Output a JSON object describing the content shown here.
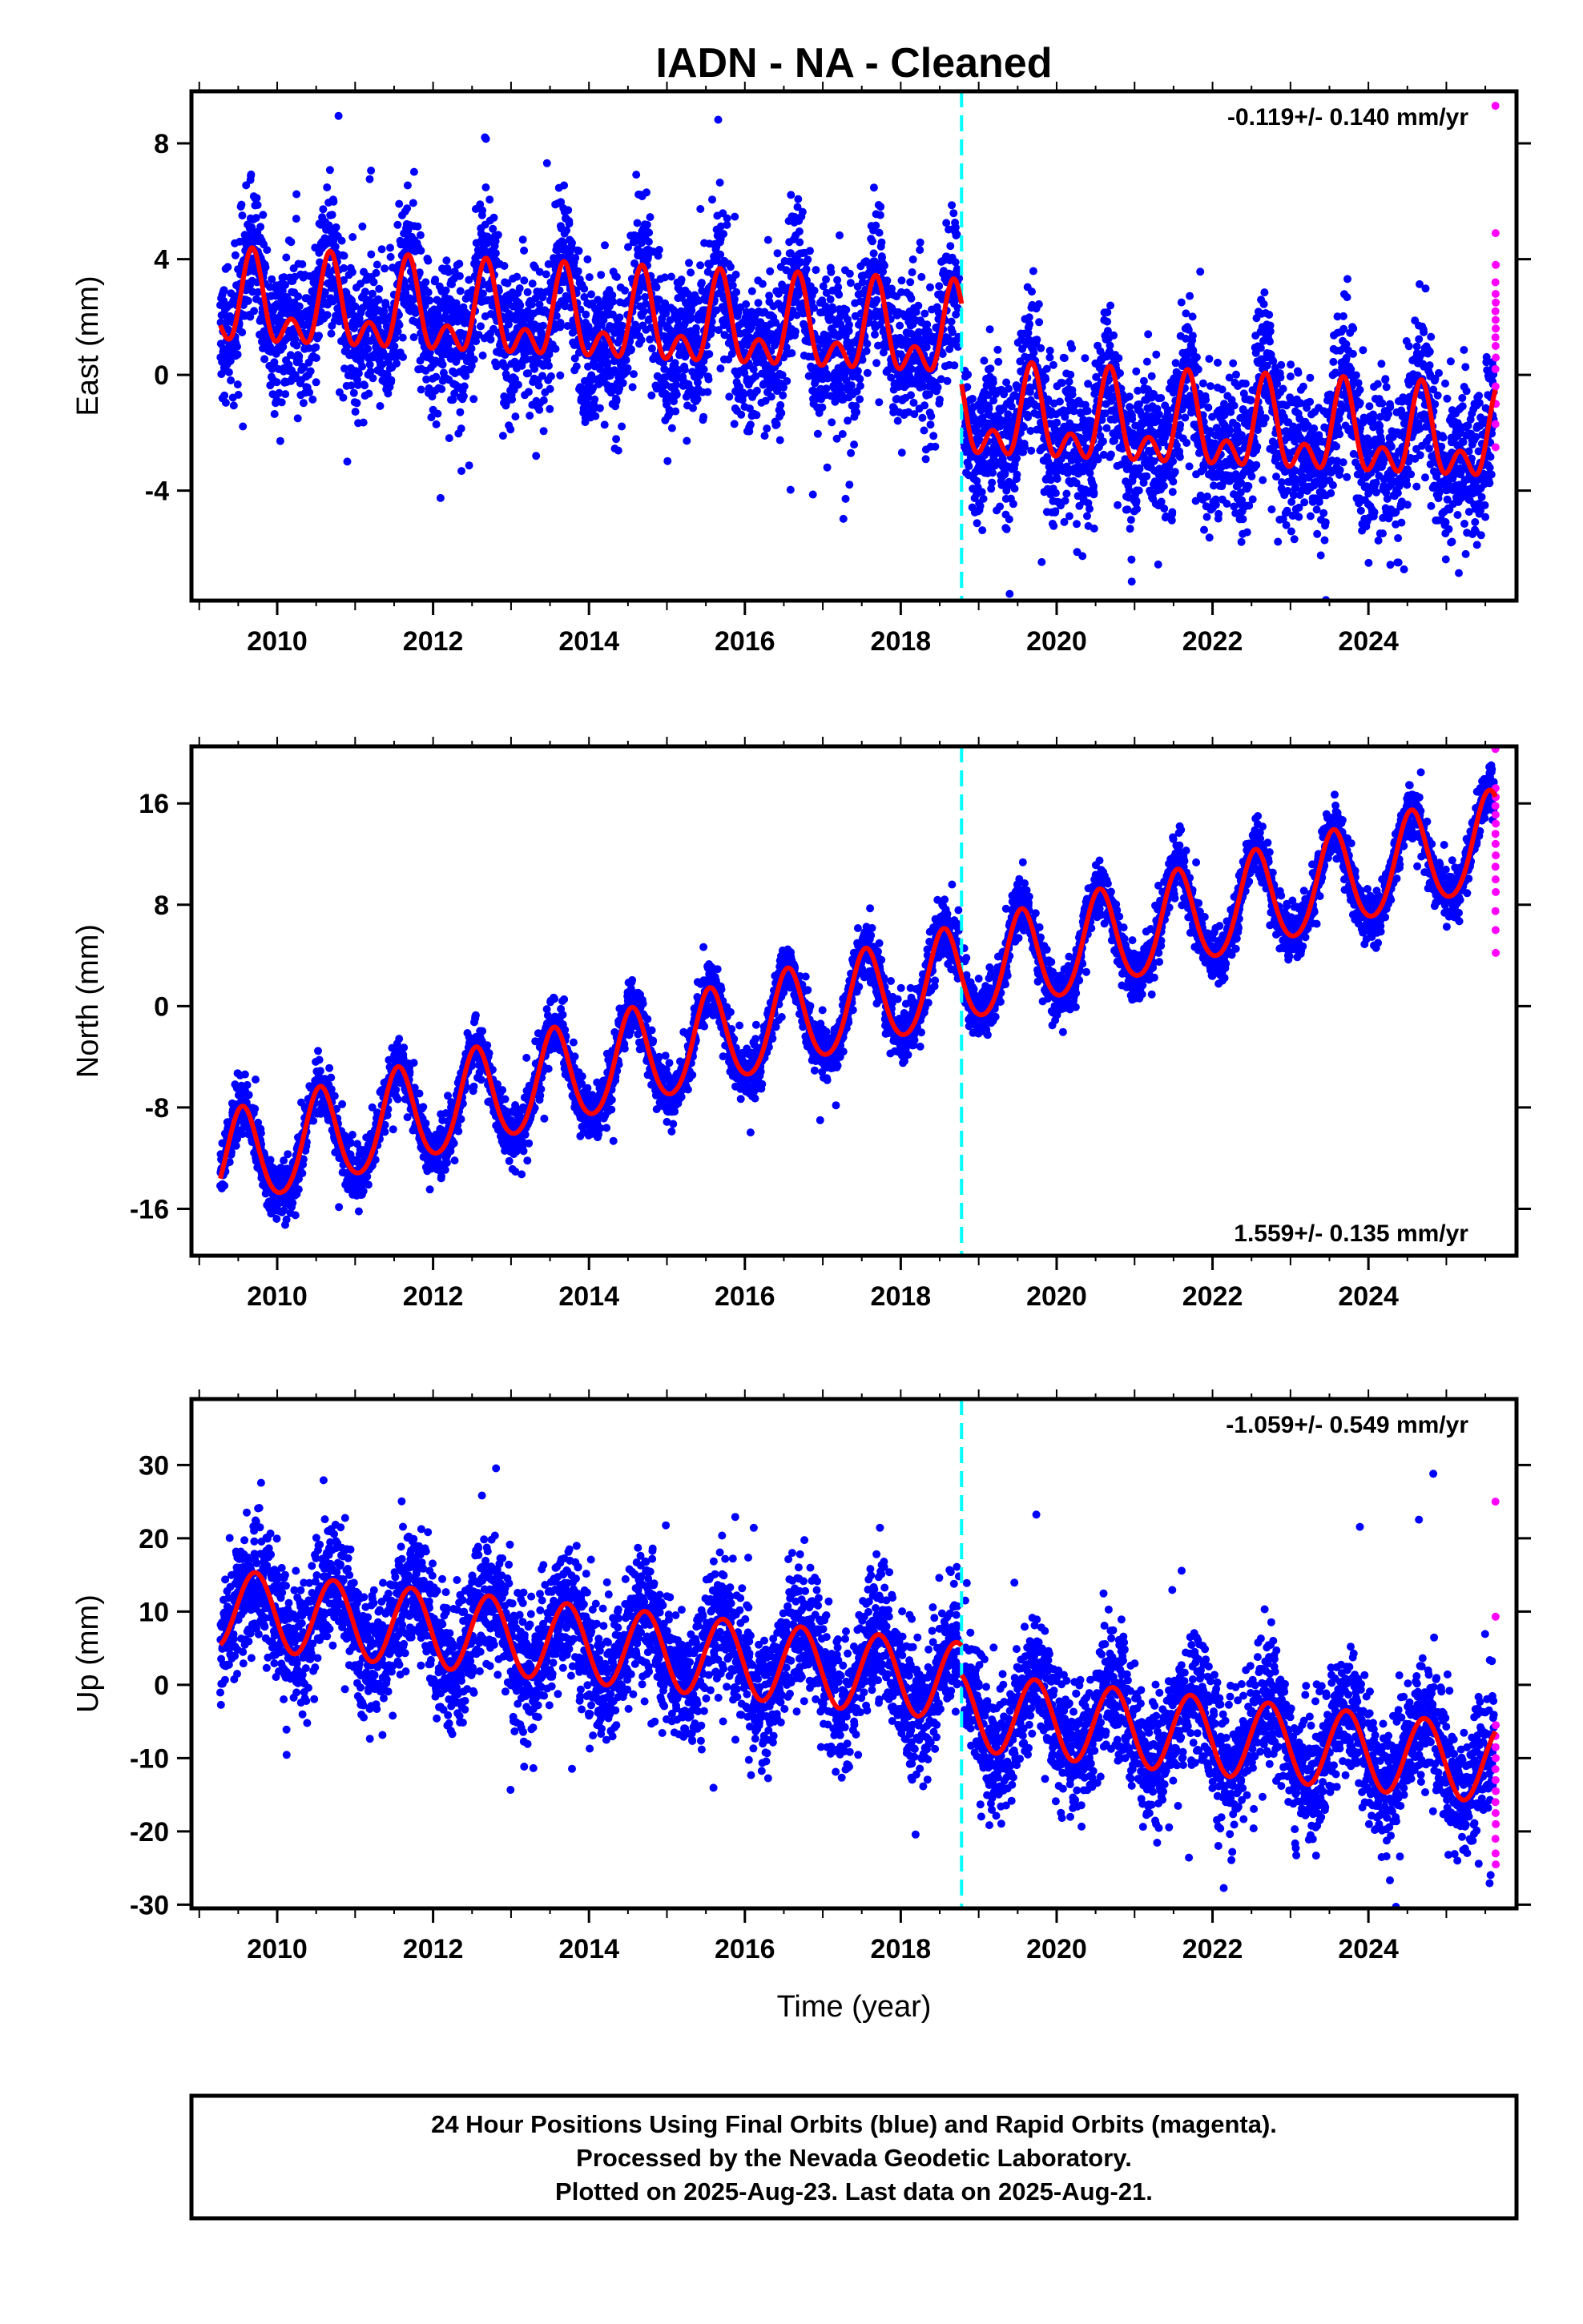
{
  "figure": {
    "title": "IADN  - NA - Cleaned",
    "x_axis_label": "Time (year)",
    "notes": [
      "24 Hour Positions Using Final Orbits (blue) and Rapid Orbits (magenta).",
      "Processed by the Nevada Geodetic Laboratory.",
      "Plotted on 2025-Aug-23. Last data on 2025-Aug-21."
    ]
  },
  "colors": {
    "final_orbits": "#0000ff",
    "rapid_orbits": "#ff00ff",
    "model_fit": "#ff0000",
    "equipment_change": "#00ffff"
  },
  "chart_data": [
    {
      "type": "scatter",
      "component": "East",
      "ylabel": "East (mm)",
      "rate_label": "-0.119+/- 0.140 mm/yr",
      "rate_position": "top-right",
      "xlim": [
        2008.9,
        2025.9
      ],
      "ylim": [
        -7.8,
        9.8
      ],
      "x_ticks": [
        2010,
        2012,
        2014,
        2016,
        2018,
        2020,
        2022,
        2024
      ],
      "y_ticks": [
        -4,
        0,
        4,
        8
      ],
      "grid": false,
      "first_obs": 2009.27,
      "last_obs": 2025.63,
      "equipment_change": 2018.78,
      "model": {
        "segments": [
          {
            "from": 2009.27,
            "to": 2018.78,
            "offset": 1.9,
            "rate": -0.119,
            "t0": 2013.0,
            "annual_amplitude": 1.2,
            "annual_peak": 2009.68,
            "semiannual_amplitude": 0.9,
            "semiannual_peak": 2009.68
          },
          {
            "from": 2018.78,
            "to": 2025.63,
            "offset": -1.95,
            "rate": -0.119,
            "t0": 2022.0,
            "annual_amplitude": 1.2,
            "annual_peak": 2009.68,
            "semiannual_amplitude": 0.9,
            "semiannual_peak": 2009.68
          }
        ]
      },
      "scatter_sd": 1.25,
      "rapid_values": [
        9.3,
        4.9,
        3.8,
        3.2,
        2.8,
        2.5,
        2.2,
        1.9,
        1.6,
        1.3,
        1.0,
        0.6,
        0.2,
        -0.4,
        -1.0,
        -1.7,
        -2.5
      ]
    },
    {
      "type": "scatter",
      "component": "North",
      "ylabel": "North (mm)",
      "rate_label": "1.559+/- 0.135 mm/yr",
      "rate_position": "bottom-right",
      "xlim": [
        2008.9,
        2025.9
      ],
      "ylim": [
        -19.7,
        20.5
      ],
      "x_ticks": [
        2010,
        2012,
        2014,
        2016,
        2018,
        2020,
        2022,
        2024
      ],
      "y_ticks": [
        -16,
        -8,
        0,
        8,
        16
      ],
      "grid": false,
      "first_obs": 2009.27,
      "last_obs": 2025.63,
      "equipment_change": 2018.78,
      "model": {
        "segments": [
          {
            "from": 2009.27,
            "to": 2025.63,
            "offset": 0.3,
            "rate": 1.559,
            "t0": 2017.5,
            "annual_amplitude": 3.8,
            "annual_peak": 2009.55,
            "semiannual_amplitude": 0.4,
            "semiannual_peak": 2009.55
          }
        ]
      },
      "scatter_sd": 1.05,
      "rapid_values": [
        20.3,
        17.2,
        16.5,
        15.8,
        15.1,
        14.4,
        13.6,
        12.8,
        11.9,
        11.0,
        10.0,
        9.0,
        7.5,
        6.0,
        4.2
      ]
    },
    {
      "type": "scatter",
      "component": "Up",
      "ylabel": "Up (mm)",
      "rate_label": "-1.059+/- 0.549 mm/yr",
      "rate_position": "top-right",
      "xlim": [
        2008.9,
        2025.9
      ],
      "ylim": [
        -30.5,
        39
      ],
      "x_ticks": [
        2010,
        2012,
        2014,
        2016,
        2018,
        2020,
        2022,
        2024
      ],
      "y_ticks": [
        -30,
        -20,
        -10,
        0,
        10,
        20,
        30
      ],
      "grid": false,
      "first_obs": 2009.27,
      "last_obs": 2025.63,
      "equipment_change": 2018.78,
      "model": {
        "segments": [
          {
            "from": 2009.27,
            "to": 2018.78,
            "offset": 5.5,
            "rate": -1.059,
            "t0": 2014.0,
            "annual_amplitude": 5.3,
            "annual_peak": 2009.72,
            "semiannual_amplitude": 0.0,
            "semiannual_peak": 2009.72
          },
          {
            "from": 2018.78,
            "to": 2025.63,
            "offset": -7.0,
            "rate": -1.059,
            "t0": 2022.0,
            "annual_amplitude": 5.3,
            "annual_peak": 2009.72,
            "semiannual_amplitude": 0.0,
            "semiannual_peak": 2009.72
          }
        ]
      },
      "scatter_sd": 4.3,
      "rapid_values": [
        25.0,
        9.3,
        -5.5,
        -7.0,
        -8.5,
        -10.0,
        -11.5,
        -13.0,
        -14.5,
        -16.0,
        -17.5,
        -19.0,
        -21.0,
        -23.0,
        -24.5
      ]
    }
  ]
}
